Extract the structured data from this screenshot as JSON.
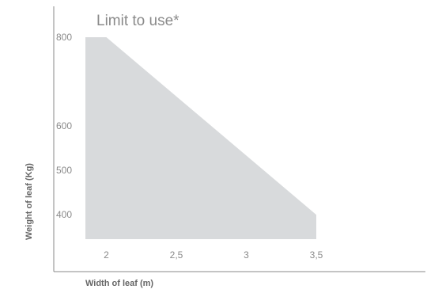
{
  "chart_data": {
    "type": "area",
    "title": "Limit to use*",
    "xlabel": "Width of leaf (m)",
    "ylabel": "Weight of leaf (Kg)",
    "x_ticks": [
      {
        "value": 2,
        "label": "2"
      },
      {
        "value": 2.5,
        "label": "2,5"
      },
      {
        "value": 3,
        "label": "3"
      },
      {
        "value": 3.5,
        "label": "3,5"
      }
    ],
    "y_ticks": [
      {
        "value": 400,
        "label": "400"
      },
      {
        "value": 500,
        "label": "500"
      },
      {
        "value": 600,
        "label": "600"
      },
      {
        "value": 800,
        "label": "800"
      }
    ],
    "x": [
      1.85,
      2.0,
      3.5,
      3.5,
      1.85
    ],
    "y": [
      800,
      800,
      400,
      345,
      345
    ],
    "xlim": [
      1.85,
      3.5
    ],
    "ylim": [
      345,
      800
    ],
    "grid": false,
    "colors": {
      "fill": "#d8dadc",
      "axis": "#888888",
      "text": "#8a8a8a"
    }
  }
}
